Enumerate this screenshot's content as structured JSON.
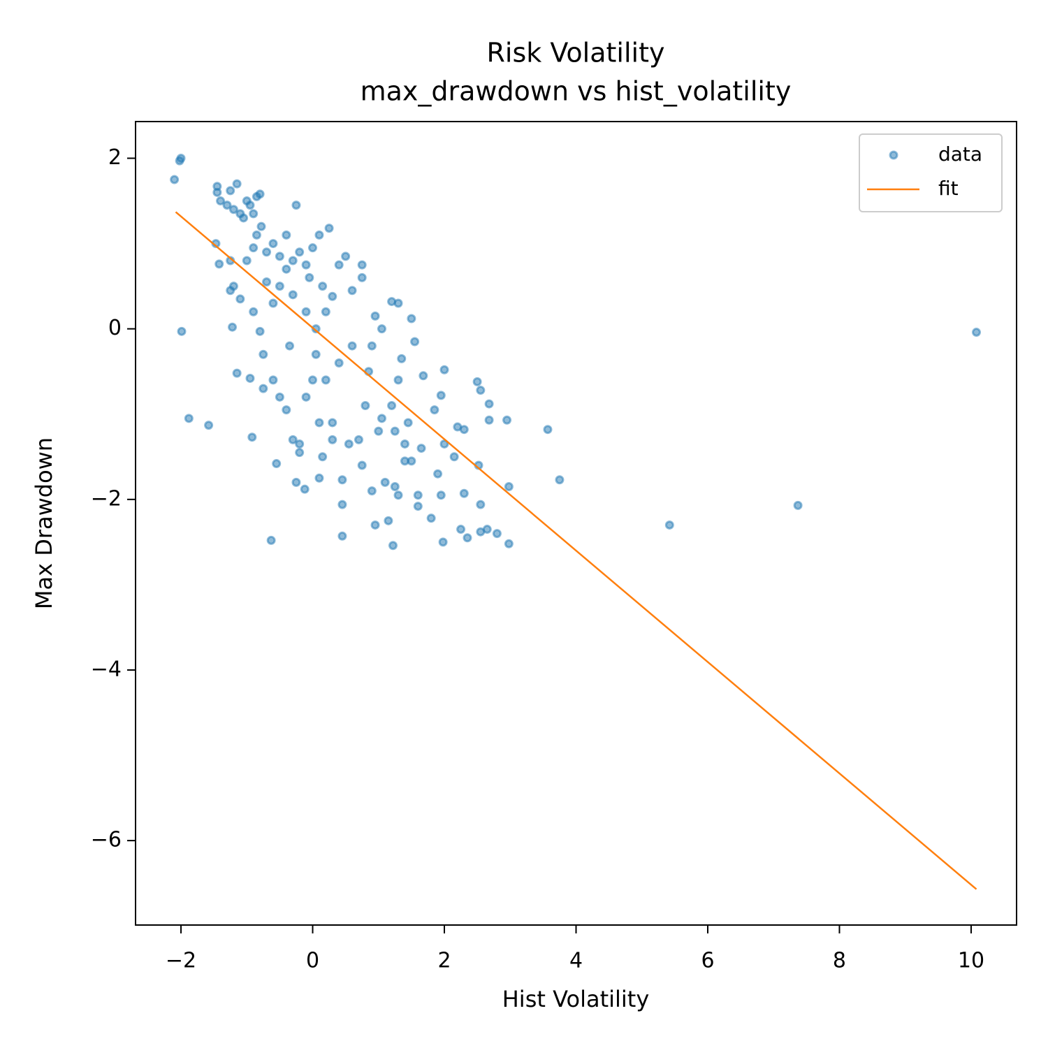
{
  "chart_data": {
    "type": "scatter",
    "title": "Risk Volatility",
    "subtitle": "max_drawdown vs hist_volatility",
    "x_label": "Hist Volatility",
    "y_label": "Max Drawdown",
    "xlim": [
      -2.69,
      10.69
    ],
    "ylim": [
      -6.99,
      2.43
    ],
    "xticks": [
      {
        "value": -2,
        "label": "−2"
      },
      0,
      2,
      4,
      6,
      8,
      10
    ],
    "yticks": [
      {
        "value": -6,
        "label": "−6"
      },
      {
        "value": -4,
        "label": "−4"
      },
      {
        "value": -2,
        "label": "−2"
      },
      0,
      2
    ],
    "grid": false,
    "legend": "upper right",
    "series": [
      {
        "name": "data",
        "type": "scatter",
        "color": "#1f77b4",
        "x": [
          -2.0,
          -2.02,
          -2.1,
          -1.99,
          -1.88,
          -1.58,
          -1.45,
          -1.45,
          -1.4,
          -1.3,
          -1.25,
          -1.2,
          -1.15,
          -1.1,
          -1.05,
          -1.0,
          -0.95,
          -0.9,
          -0.85,
          -0.8,
          -0.78,
          -0.85,
          -0.9,
          -0.7,
          -0.6,
          -0.5,
          -0.4,
          -0.3,
          -0.2,
          -0.1,
          0.0,
          0.1,
          0.25,
          -0.25,
          -1.47,
          -1.42,
          -1.25,
          -1.2,
          -1.1,
          -1.25,
          -1.22,
          -1.15,
          -0.95,
          -0.92,
          -0.8,
          -0.75,
          -0.6,
          -0.5,
          -0.4,
          -0.3,
          -0.2,
          -0.2,
          -0.1,
          0.0,
          0.1,
          0.15,
          -0.55,
          -0.63,
          -0.25,
          -0.12,
          0.1,
          0.45,
          0.45,
          0.45,
          0.9,
          0.95,
          1.15,
          1.22,
          1.3,
          1.4,
          1.5,
          1.6,
          1.6,
          1.8,
          1.95,
          1.98,
          2.0,
          2.3,
          2.35,
          2.25,
          2.55,
          2.55,
          2.65,
          2.8,
          2.98,
          2.98,
          2.95,
          2.68,
          2.68,
          2.55,
          2.5,
          2.52,
          2.15,
          2.2,
          2.3,
          1.9,
          1.85,
          1.95,
          2.0,
          1.68,
          1.55,
          1.5,
          1.35,
          1.3,
          1.2,
          1.05,
          0.95,
          0.9,
          0.75,
          0.6,
          0.5,
          0.4,
          0.3,
          0.2,
          0.05,
          -0.1,
          -0.3,
          -0.5,
          -0.7,
          0.8,
          0.7,
          0.55,
          0.3,
          0.3,
          1.0,
          1.05,
          1.25,
          1.2,
          1.45,
          1.65,
          1.3,
          0.85,
          0.6,
          0.4,
          0.2,
          1.4,
          0.75,
          1.1,
          1.25,
          3.57,
          3.75,
          5.42,
          7.37,
          10.08,
          0.75,
          -0.05,
          0.15,
          -0.6,
          -0.9,
          -0.35,
          0.05,
          -0.75,
          -1.0,
          -0.4
        ],
        "values": [
          2.0,
          1.97,
          1.75,
          -0.03,
          -1.05,
          -1.13,
          1.67,
          1.6,
          1.5,
          1.45,
          1.62,
          1.4,
          1.7,
          1.35,
          1.3,
          1.5,
          1.45,
          1.35,
          1.55,
          1.58,
          1.2,
          1.1,
          0.95,
          0.9,
          1.0,
          0.85,
          0.7,
          0.8,
          0.9,
          0.75,
          0.95,
          1.1,
          1.18,
          1.45,
          1.0,
          0.76,
          0.8,
          0.5,
          0.35,
          0.45,
          0.02,
          -0.52,
          -0.58,
          -1.27,
          -0.03,
          -0.3,
          -0.6,
          -0.8,
          -0.95,
          -1.3,
          -1.35,
          -1.45,
          -0.8,
          -0.6,
          -1.1,
          -1.5,
          -1.58,
          -2.48,
          -1.8,
          -1.88,
          -1.75,
          -1.77,
          -2.43,
          -2.06,
          -1.9,
          -2.3,
          -2.25,
          -2.54,
          -1.95,
          -1.55,
          -1.55,
          -1.95,
          -2.08,
          -2.22,
          -1.95,
          -2.5,
          -1.35,
          -1.93,
          -2.45,
          -2.35,
          -2.06,
          -2.38,
          -2.35,
          -2.4,
          -2.52,
          -1.85,
          -1.07,
          -1.07,
          -0.88,
          -0.72,
          -0.62,
          -1.6,
          -1.5,
          -1.15,
          -1.18,
          -1.7,
          -0.95,
          -0.78,
          -0.48,
          -0.55,
          -0.15,
          0.12,
          -0.35,
          0.3,
          0.32,
          0.0,
          0.15,
          -0.2,
          0.75,
          0.45,
          0.85,
          0.75,
          0.38,
          0.2,
          0.0,
          0.2,
          0.4,
          0.5,
          0.55,
          -0.9,
          -1.3,
          -1.35,
          -1.1,
          -1.3,
          -1.2,
          -1.05,
          -1.2,
          -0.9,
          -1.1,
          -1.4,
          -0.6,
          -0.5,
          -0.2,
          -0.4,
          -0.6,
          -1.35,
          -1.6,
          -1.8,
          -1.85,
          -1.18,
          -1.77,
          -2.3,
          -2.07,
          -0.04,
          0.6,
          0.6,
          0.5,
          0.3,
          0.2,
          -0.2,
          -0.3,
          -0.7,
          0.8,
          1.1
        ]
      },
      {
        "name": "fit",
        "type": "line",
        "color": "#ff7f0e",
        "x": [
          -2.08,
          10.08
        ],
        "values": [
          1.37,
          -6.57
        ]
      }
    ]
  }
}
